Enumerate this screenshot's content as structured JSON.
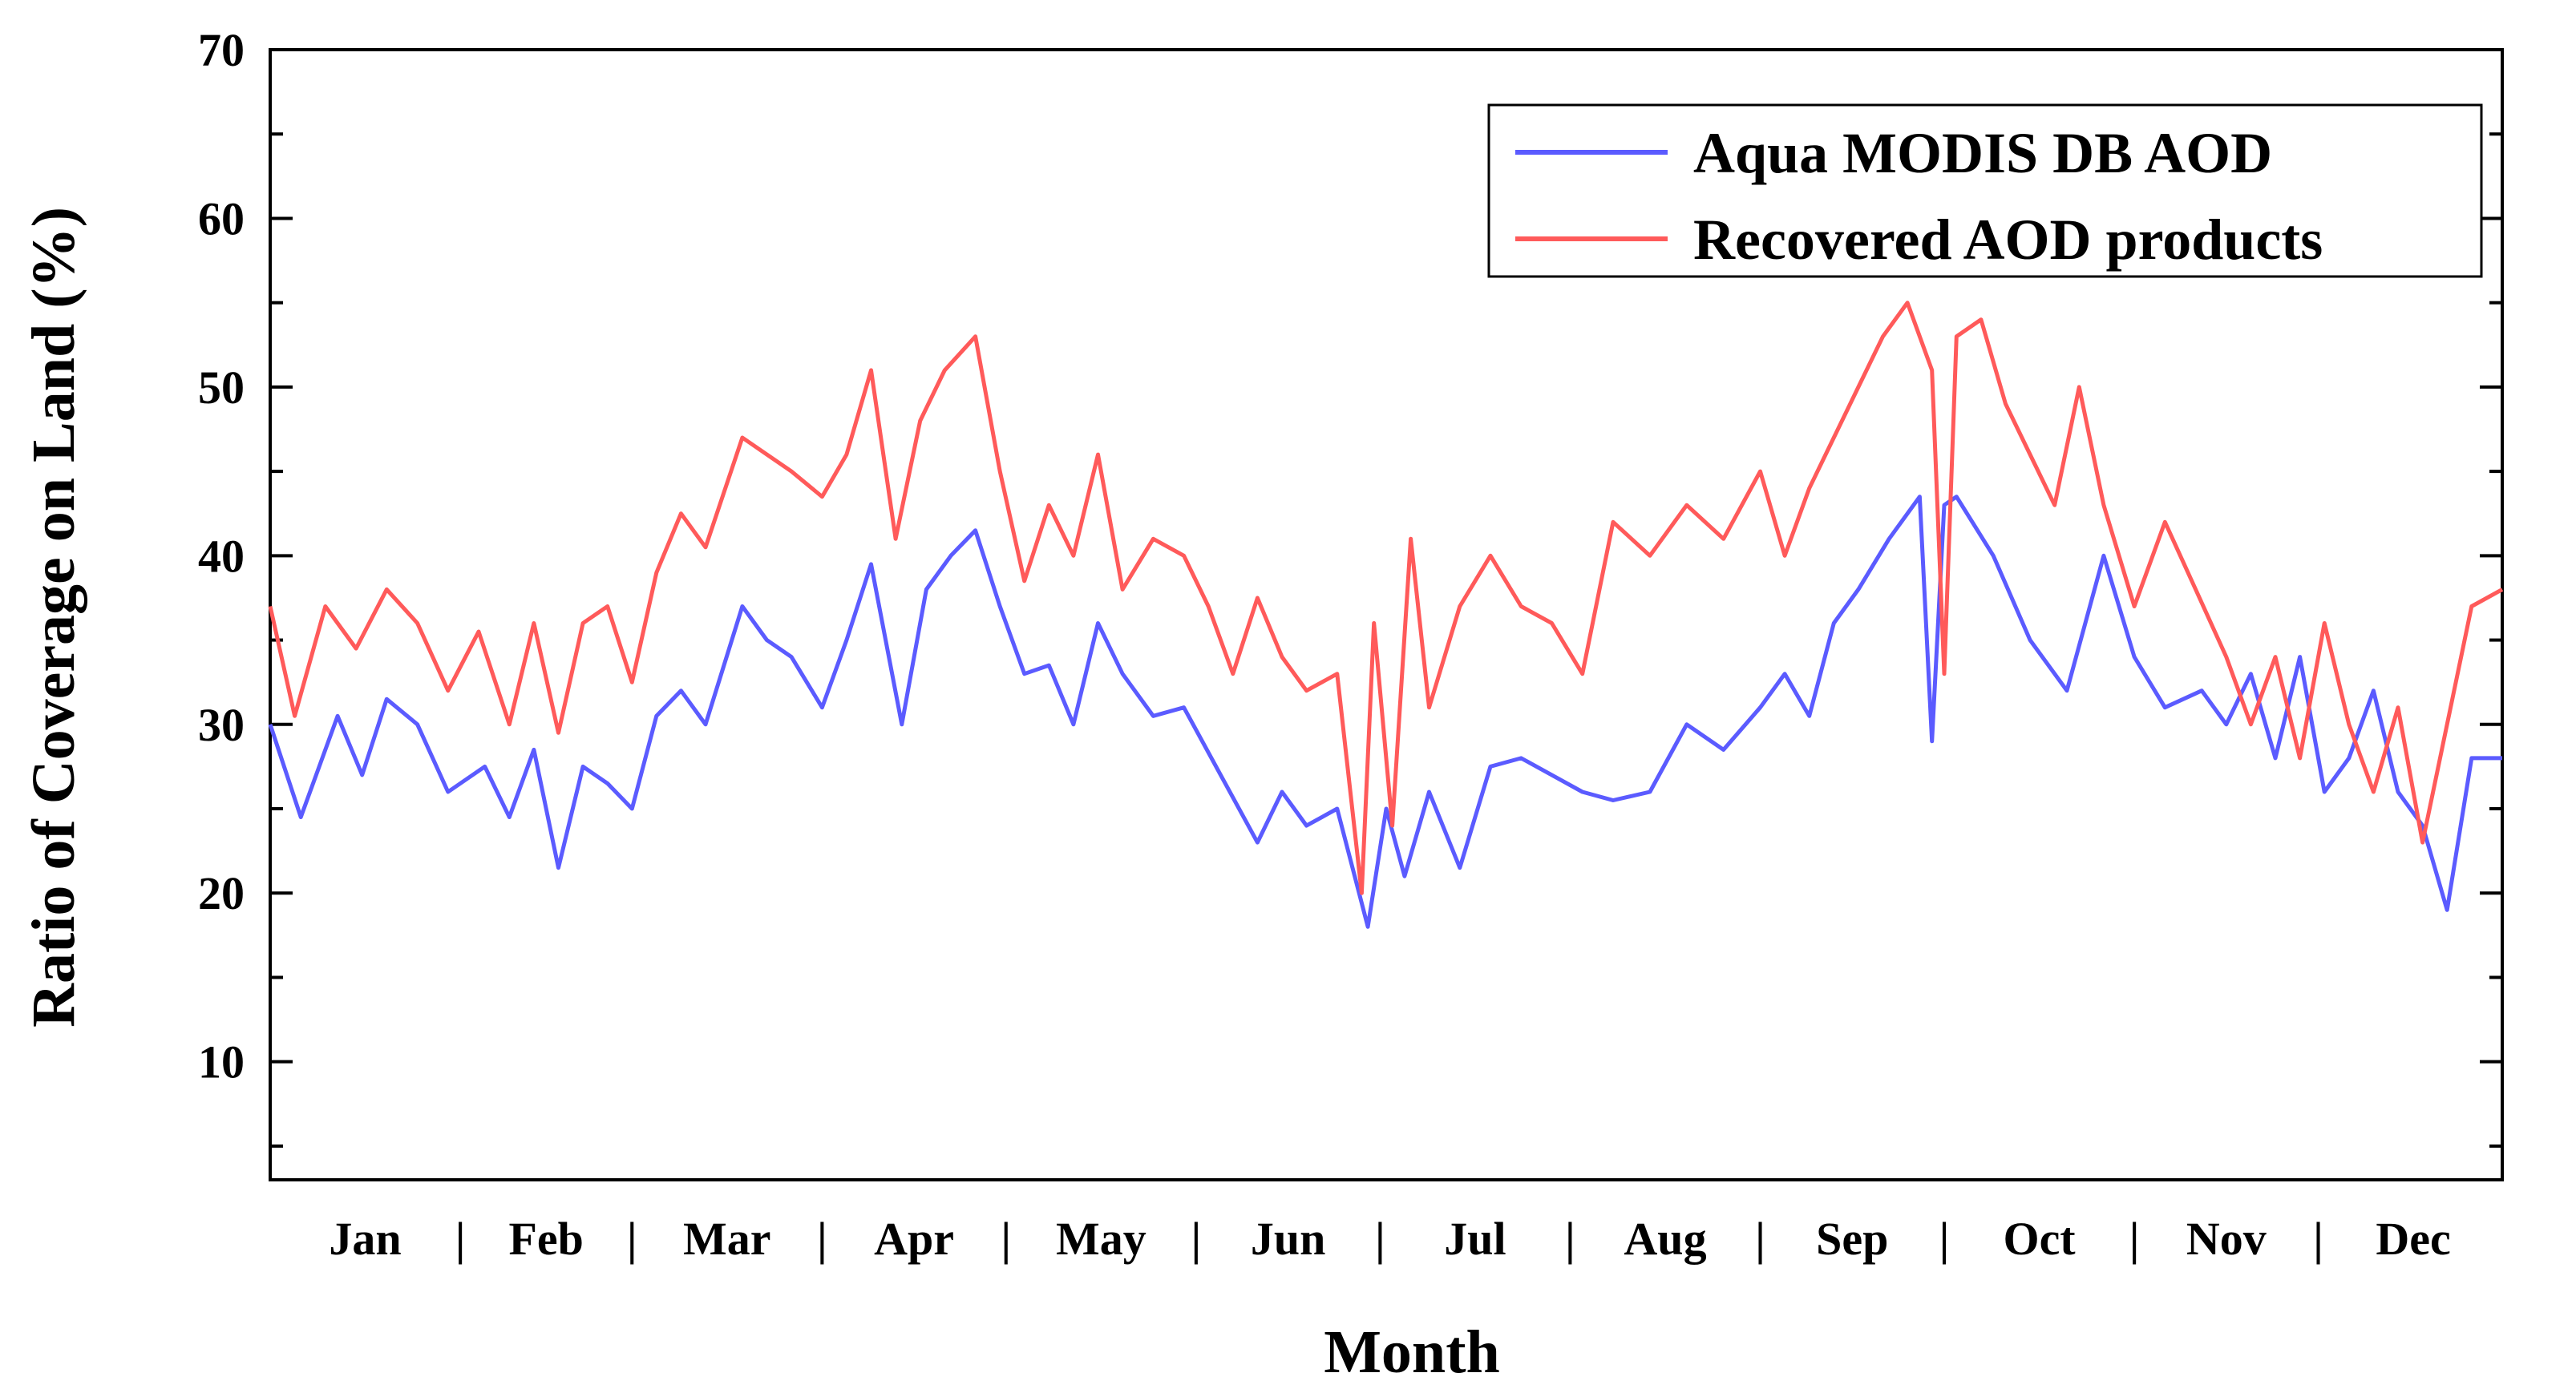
{
  "chart_data": {
    "type": "line",
    "xlabel": "Month",
    "ylabel": "Ratio of Coverage on Land (%)",
    "ylim": [
      3,
      70
    ],
    "xlim": [
      1,
      365
    ],
    "yticks": [
      10,
      20,
      30,
      40,
      50,
      60,
      70
    ],
    "month_labels": [
      "Jan",
      "Feb",
      "Mar",
      "Apr",
      "May",
      "Jun",
      "Jul",
      "Aug",
      "Sep",
      "Oct",
      "Nov",
      "Dec"
    ],
    "month_separator": "|",
    "month_start_days": [
      1,
      32,
      60,
      91,
      121,
      152,
      182,
      213,
      244,
      274,
      305,
      335
    ],
    "grid": false,
    "legend_position": "top-right",
    "series": [
      {
        "name": "Aqua MODIS DB AOD",
        "color": "#5b5bff",
        "x": [
          1,
          6,
          12,
          16,
          20,
          25,
          30,
          36,
          40,
          44,
          48,
          52,
          56,
          60,
          64,
          68,
          72,
          78,
          82,
          86,
          91,
          95,
          99,
          104,
          108,
          112,
          116,
          120,
          124,
          128,
          132,
          136,
          140,
          145,
          150,
          156,
          162,
          166,
          170,
          175,
          180,
          183,
          186,
          190,
          195,
          200,
          205,
          210,
          215,
          220,
          226,
          232,
          238,
          244,
          248,
          252,
          256,
          260,
          265,
          270,
          272,
          274,
          276,
          282,
          288,
          294,
          300,
          305,
          310,
          316,
          320,
          324,
          328,
          332,
          336,
          340,
          344,
          348,
          352,
          356,
          360,
          365
        ],
        "y": [
          30,
          24.5,
          30.5,
          27,
          31.5,
          30,
          26,
          27.5,
          24.5,
          28.5,
          21.5,
          27.5,
          26.5,
          25,
          30.5,
          32,
          30,
          37,
          35,
          34,
          31,
          35,
          39.5,
          30,
          38,
          40,
          41.5,
          37,
          33,
          33.5,
          30,
          36,
          33,
          30.5,
          31,
          27,
          23,
          26,
          24,
          25,
          18,
          25,
          21,
          26,
          21.5,
          27.5,
          28,
          27,
          26,
          25.5,
          26,
          30,
          28.5,
          31,
          33,
          30.5,
          36,
          38,
          41,
          43.5,
          29,
          43,
          43.5,
          40,
          35,
          32,
          40,
          34,
          31,
          32,
          30,
          33,
          28,
          34,
          26,
          28,
          32,
          26,
          24,
          19,
          28,
          28
        ]
      },
      {
        "name": "Recovered AOD products",
        "color": "#ff5a5a",
        "x": [
          1,
          5,
          10,
          15,
          20,
          25,
          30,
          35,
          40,
          44,
          48,
          52,
          56,
          60,
          64,
          68,
          72,
          78,
          82,
          86,
          91,
          95,
          99,
          103,
          107,
          111,
          116,
          120,
          124,
          128,
          132,
          136,
          140,
          145,
          150,
          154,
          158,
          162,
          166,
          170,
          175,
          179,
          181,
          184,
          187,
          190,
          195,
          200,
          205,
          210,
          215,
          220,
          226,
          232,
          238,
          244,
          248,
          252,
          256,
          260,
          264,
          268,
          272,
          274,
          276,
          280,
          284,
          288,
          292,
          296,
          300,
          305,
          310,
          315,
          320,
          324,
          328,
          332,
          336,
          340,
          344,
          348,
          352,
          356,
          360,
          365
        ],
        "y": [
          37,
          30.5,
          37,
          34.5,
          38,
          36,
          32,
          35.5,
          30,
          36,
          29.5,
          36,
          37,
          32.5,
          39,
          42.5,
          40.5,
          47,
          46,
          45,
          43.5,
          46,
          51,
          41,
          48,
          51,
          53,
          45,
          38.5,
          43,
          40,
          46,
          38,
          41,
          40,
          37,
          33,
          37.5,
          34,
          32,
          33,
          20,
          36,
          24,
          41,
          31,
          37,
          40,
          37,
          36,
          33,
          42,
          40,
          43,
          41,
          45,
          40,
          44,
          47,
          50,
          53,
          55,
          51,
          33,
          53,
          54,
          49,
          46,
          43,
          50,
          43,
          37,
          42,
          38,
          34,
          30,
          34,
          28,
          36,
          30,
          26,
          31,
          23,
          30,
          37,
          38
        ]
      }
    ]
  }
}
